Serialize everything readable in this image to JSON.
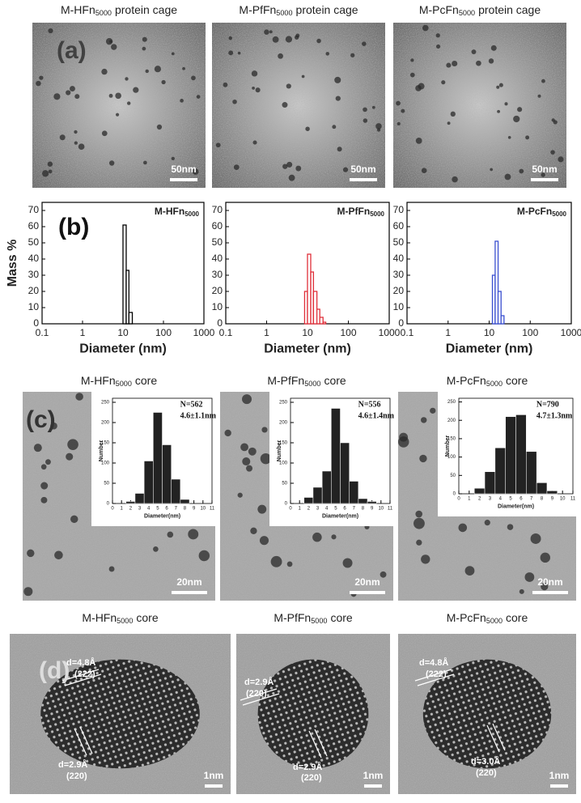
{
  "panel_labels": [
    "(a)",
    "(b)",
    "(c)",
    "(d)"
  ],
  "row_a": {
    "titles": [
      {
        "name": "M-HFn",
        "sub": "5000",
        "rest": "protein cage"
      },
      {
        "name": "M-PfFn",
        "sub": "5000",
        "rest": "protein cage"
      },
      {
        "name": "M-PcFn",
        "sub": "5000",
        "rest": "protein cage"
      }
    ],
    "scale_bars": [
      "50nm",
      "50nm",
      "50nm"
    ]
  },
  "row_c": {
    "titles": [
      {
        "name": "M-HFn",
        "sub": "5000",
        "rest": "core"
      },
      {
        "name": "M-PfFn",
        "sub": "5000",
        "rest": "core"
      },
      {
        "name": "M-PcFn",
        "sub": "5000",
        "rest": "core"
      }
    ],
    "scale_bars": [
      "20nm",
      "20nm",
      "20nm"
    ]
  },
  "row_d": {
    "titles": [
      {
        "name": "M-HFn",
        "sub": "5000",
        "rest": "core"
      },
      {
        "name": "M-PfFn",
        "sub": "5000",
        "rest": "core"
      },
      {
        "name": "M-PcFn",
        "sub": "5000",
        "rest": "core"
      }
    ],
    "scale_bars": [
      "1nm",
      "1nm",
      "1nm"
    ],
    "annotations": [
      [
        "d=4.8Å",
        "(222)",
        "d=2.9Å",
        "(220)"
      ],
      [
        "d=2.9Å",
        "(220)",
        "d=2.9Å",
        "(220)"
      ],
      [
        "d=4.8Å",
        "(222)",
        "d=3.0Å",
        "(220)"
      ]
    ]
  },
  "chart_data": [
    {
      "type": "histogram",
      "title": "M-HFn",
      "title_sub": "5000",
      "ylabel": "Mass %",
      "xlabel": "Diameter (nm)",
      "bins": [
        10,
        12,
        14,
        17
      ],
      "values": [
        61,
        33,
        7
      ],
      "color": "#000000",
      "xscale": "log",
      "xlim": [
        0.1,
        1000
      ],
      "xticks": [
        0.1,
        1,
        10,
        100,
        1000
      ],
      "ylim": [
        0,
        75
      ],
      "yticks": [
        0,
        10,
        20,
        30,
        40,
        50,
        60,
        70
      ]
    },
    {
      "type": "histogram",
      "title": "M-PfFn",
      "title_sub": "5000",
      "xlabel": "Diameter (nm)",
      "bins": [
        8.5,
        10,
        12,
        14,
        17,
        20,
        24,
        28
      ],
      "values": [
        20,
        43,
        32,
        20,
        9,
        4,
        1
      ],
      "color": "#e0303a",
      "xscale": "log",
      "xlim": [
        0.1,
        1000
      ],
      "xticks": [
        0.1,
        1,
        10,
        100,
        1000
      ],
      "ylim": [
        0,
        75
      ],
      "yticks": [
        0,
        10,
        20,
        30,
        40,
        50,
        60,
        70
      ]
    },
    {
      "type": "histogram",
      "title": "M-PcFn",
      "title_sub": "5000",
      "xlabel": "Diameter (nm)",
      "bins": [
        12,
        14,
        16.5,
        19.5,
        23
      ],
      "values": [
        30,
        51,
        20,
        5
      ],
      "color": "#3a4fd0",
      "xscale": "log",
      "xlim": [
        0.1,
        1000
      ],
      "xticks": [
        0.1,
        1,
        10,
        100,
        1000
      ],
      "ylim": [
        0,
        75
      ],
      "yticks": [
        0,
        10,
        20,
        30,
        40,
        50,
        60,
        70
      ]
    },
    {
      "type": "histogram",
      "ylabel": "Number",
      "xlabel": "Diameter(nm)",
      "annotations": [
        "N=562",
        "4.6±1.1nm"
      ],
      "bins": [
        1.5,
        2.5,
        3.5,
        4.5,
        5.5,
        6.5,
        7.5,
        8.5
      ],
      "values": [
        5,
        25,
        105,
        225,
        145,
        60,
        10
      ],
      "color": "#222222",
      "xlim": [
        0,
        11
      ],
      "xticks": [
        0,
        1,
        2,
        3,
        4,
        5,
        6,
        7,
        8,
        9,
        10,
        11
      ],
      "ylim": [
        0,
        260
      ],
      "yticks": [
        0,
        50,
        100,
        150,
        200,
        250
      ]
    },
    {
      "type": "histogram",
      "ylabel": "Number",
      "xlabel": "Diameter(nm)",
      "annotations": [
        "N=556",
        "4.6±1.4nm"
      ],
      "bins": [
        1.5,
        2.5,
        3.5,
        4.5,
        5.5,
        6.5,
        7.5,
        8.5,
        9.5
      ],
      "values": [
        15,
        40,
        80,
        235,
        150,
        55,
        12,
        5
      ],
      "color": "#222222",
      "xlim": [
        0,
        11
      ],
      "xticks": [
        0,
        1,
        2,
        3,
        4,
        5,
        6,
        7,
        8,
        9,
        10,
        11
      ],
      "ylim": [
        0,
        260
      ],
      "yticks": [
        0,
        50,
        100,
        150,
        200,
        250
      ]
    },
    {
      "type": "histogram",
      "ylabel": "Number",
      "xlabel": "Diameter(nm)",
      "annotations": [
        "N=790",
        "4.7±1.3nm"
      ],
      "bins": [
        1.5,
        2.5,
        3.5,
        4.5,
        5.5,
        6.5,
        7.5,
        8.5,
        9.5
      ],
      "values": [
        15,
        60,
        125,
        210,
        215,
        115,
        30,
        8
      ],
      "color": "#222222",
      "xlim": [
        0,
        11
      ],
      "xticks": [
        0,
        1,
        2,
        3,
        4,
        5,
        6,
        7,
        8,
        9,
        10,
        11
      ],
      "ylim": [
        0,
        260
      ],
      "yticks": [
        0,
        50,
        100,
        150,
        200,
        250
      ]
    }
  ]
}
